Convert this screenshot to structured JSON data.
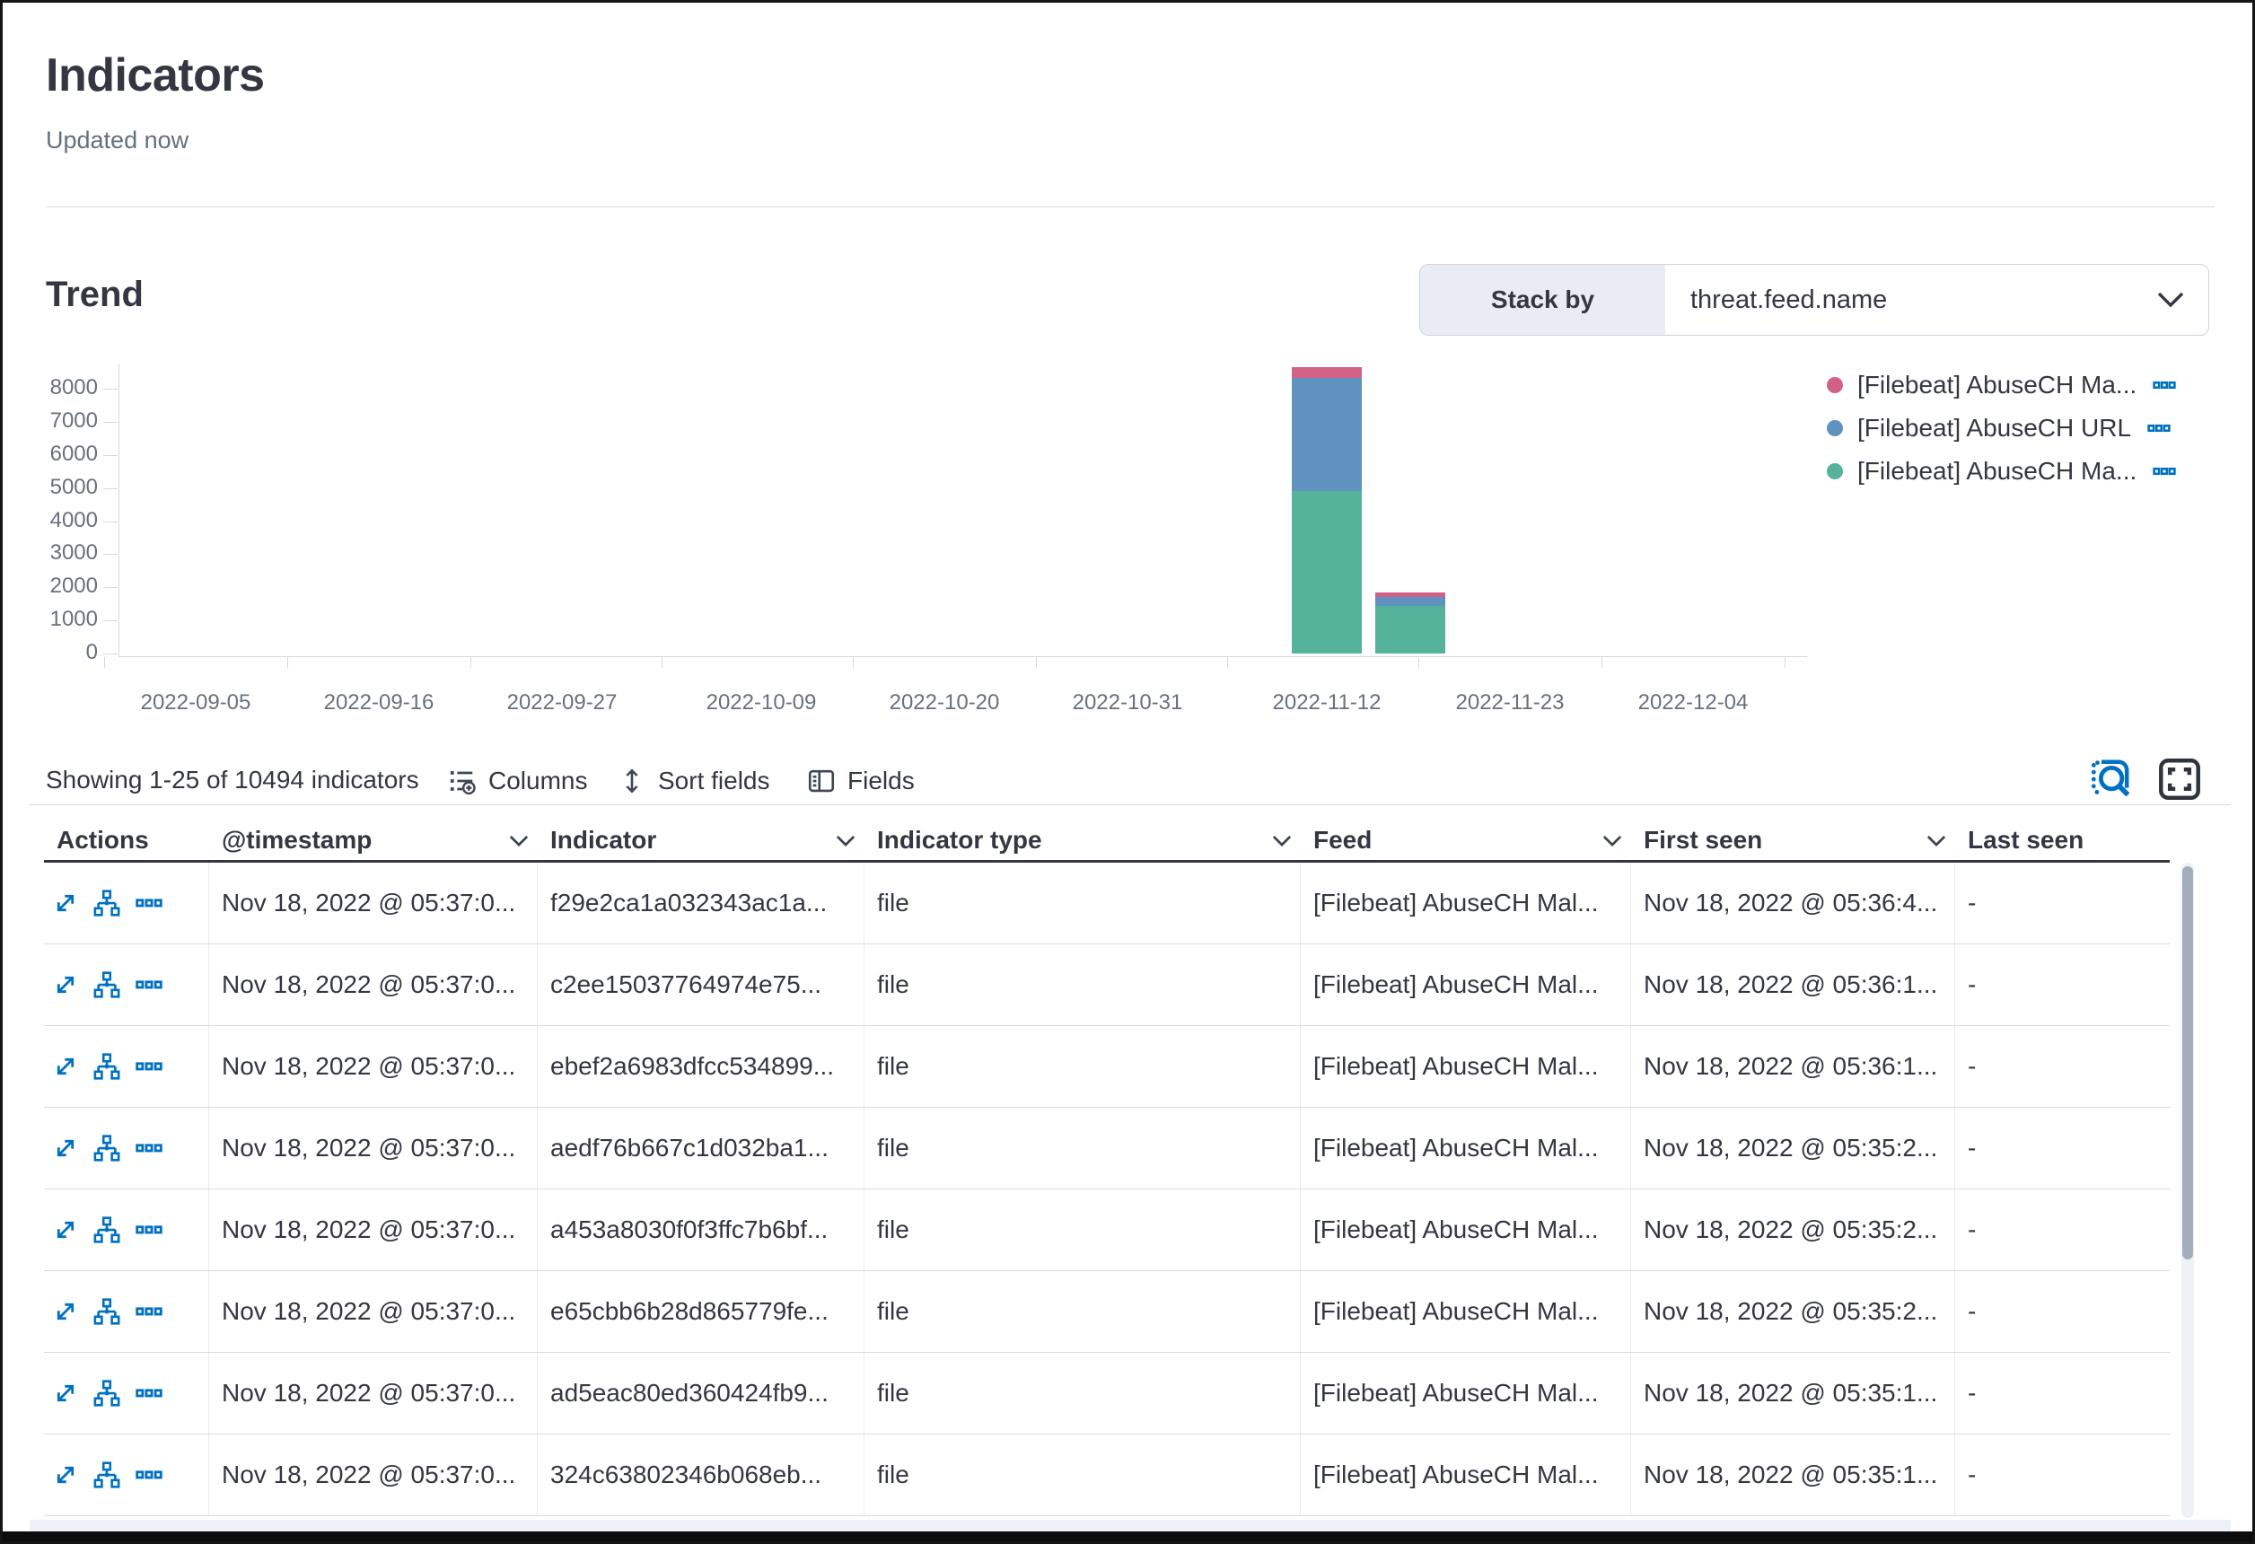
{
  "page": {
    "title": "Indicators",
    "updated": "Updated now"
  },
  "trend": {
    "heading": "Trend",
    "stack_by_label": "Stack by",
    "stack_by_value": "threat.feed.name"
  },
  "chart_data": {
    "type": "bar",
    "stacked": true,
    "title": "Trend",
    "xlabel": "",
    "ylabel": "",
    "grid": false,
    "legend_position": "right",
    "x_tick_labels": [
      "2022-09-05",
      "2022-09-16",
      "2022-09-27",
      "2022-10-09",
      "2022-10-20",
      "2022-10-31",
      "2022-11-12",
      "2022-11-23",
      "2022-12-04"
    ],
    "y_ticks": [
      0,
      1000,
      2000,
      3000,
      4000,
      5000,
      6000,
      7000,
      8000
    ],
    "ylim": [
      0,
      8700
    ],
    "bar_dates": [
      "2022-11-12",
      "2022-11-17"
    ],
    "series": [
      {
        "name": "[Filebeat] AbuseCH Ma...",
        "color": "#D36086",
        "values": [
          330,
          130
        ]
      },
      {
        "name": "[Filebeat] AbuseCH URL",
        "color": "#6092C0",
        "values": [
          3430,
          270
        ]
      },
      {
        "name": "[Filebeat] AbuseCH Ma...",
        "color": "#54B399",
        "values": [
          4900,
          1450
        ]
      }
    ]
  },
  "icons": {
    "stack_by": "chevron-down-icon",
    "header_sort": "chevron-down-icon",
    "columns": "list-add-icon",
    "sort_fields": "sort-vertical-icon",
    "fields": "split-panel-icon",
    "inspect": "inspect-search-icon",
    "fullscreen": "fullscreen-icon",
    "legend_item_actions": "more-actions-icon",
    "row_actions": [
      "open-details-icon",
      "add-to-timeline-icon",
      "more-actions-icon"
    ]
  },
  "table": {
    "summary": "Showing 1-25 of 10494 indicators",
    "toolbar": {
      "columns_label": "Columns",
      "sort_label": "Sort fields",
      "fields_label": "Fields"
    },
    "columns": [
      {
        "label": "Actions",
        "sortable": false
      },
      {
        "label": "@timestamp",
        "sortable": true
      },
      {
        "label": "Indicator",
        "sortable": true
      },
      {
        "label": "Indicator type",
        "sortable": true
      },
      {
        "label": "Feed",
        "sortable": true
      },
      {
        "label": "First seen",
        "sortable": true
      },
      {
        "label": "Last seen",
        "sortable": false
      }
    ],
    "rows": [
      {
        "timestamp": "Nov 18, 2022 @ 05:37:0...",
        "indicator": "f29e2ca1a032343ac1a...",
        "indicator_type": "file",
        "feed": "[Filebeat] AbuseCH Mal...",
        "first_seen": "Nov 18, 2022 @ 05:36:4...",
        "last_seen": "-"
      },
      {
        "timestamp": "Nov 18, 2022 @ 05:37:0...",
        "indicator": "c2ee15037764974e75...",
        "indicator_type": "file",
        "feed": "[Filebeat] AbuseCH Mal...",
        "first_seen": "Nov 18, 2022 @ 05:36:1...",
        "last_seen": "-"
      },
      {
        "timestamp": "Nov 18, 2022 @ 05:37:0...",
        "indicator": "ebef2a6983dfcc534899...",
        "indicator_type": "file",
        "feed": "[Filebeat] AbuseCH Mal...",
        "first_seen": "Nov 18, 2022 @ 05:36:1...",
        "last_seen": "-"
      },
      {
        "timestamp": "Nov 18, 2022 @ 05:37:0...",
        "indicator": "aedf76b667c1d032ba1...",
        "indicator_type": "file",
        "feed": "[Filebeat] AbuseCH Mal...",
        "first_seen": "Nov 18, 2022 @ 05:35:2...",
        "last_seen": "-"
      },
      {
        "timestamp": "Nov 18, 2022 @ 05:37:0...",
        "indicator": "a453a8030f0f3ffc7b6bf...",
        "indicator_type": "file",
        "feed": "[Filebeat] AbuseCH Mal...",
        "first_seen": "Nov 18, 2022 @ 05:35:2...",
        "last_seen": "-"
      },
      {
        "timestamp": "Nov 18, 2022 @ 05:37:0...",
        "indicator": "e65cbb6b28d865779fe...",
        "indicator_type": "file",
        "feed": "[Filebeat] AbuseCH Mal...",
        "first_seen": "Nov 18, 2022 @ 05:35:2...",
        "last_seen": "-"
      },
      {
        "timestamp": "Nov 18, 2022 @ 05:37:0...",
        "indicator": "ad5eac80ed360424fb9...",
        "indicator_type": "file",
        "feed": "[Filebeat] AbuseCH Mal...",
        "first_seen": "Nov 18, 2022 @ 05:35:1...",
        "last_seen": "-"
      },
      {
        "timestamp": "Nov 18, 2022 @ 05:37:0...",
        "indicator": "324c63802346b068eb...",
        "indicator_type": "file",
        "feed": "[Filebeat] AbuseCH Mal...",
        "first_seen": "Nov 18, 2022 @ 05:35:1...",
        "last_seen": "-"
      }
    ]
  }
}
